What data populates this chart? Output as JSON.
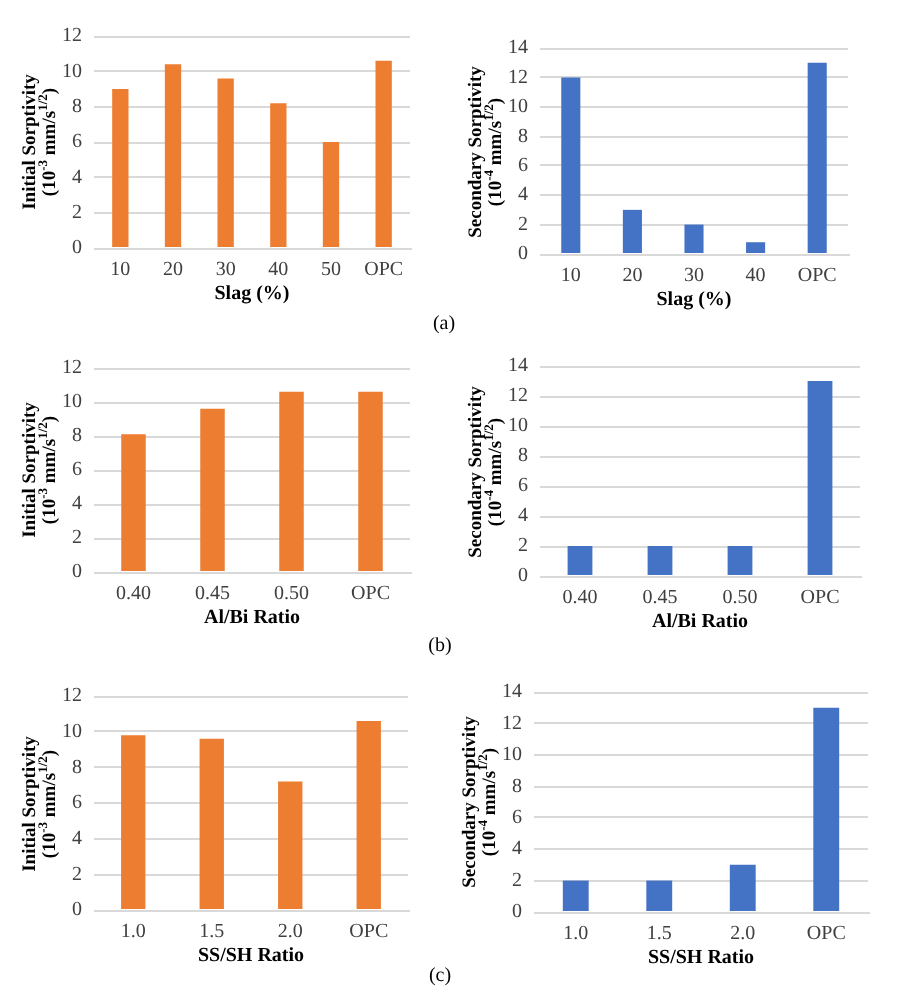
{
  "chart_data": [
    {
      "type": "bar",
      "categories": [
        "10",
        "20",
        "30",
        "40",
        "50",
        "OPC"
      ],
      "values": [
        9.0,
        10.4,
        9.6,
        8.2,
        6.0,
        10.6
      ],
      "color": "#ed7d31",
      "xlabel": "Slag (%)",
      "ylabel": "Initial Sorptivity\n(10$^{-3}$ mm/s$^{1/2}$)",
      "ylim": [
        0,
        12
      ],
      "yticks": [
        0,
        2,
        4,
        6,
        8,
        10,
        12
      ],
      "grid": "y",
      "annotations": [
        "(a)"
      ]
    },
    {
      "type": "bar",
      "categories": [
        "10",
        "20",
        "30",
        "40",
        "OPC"
      ],
      "values": [
        12,
        3,
        2,
        0.8,
        13
      ],
      "color": "#4472c4",
      "xlabel": "Slag (%)",
      "ylabel": "Secondary Sorptivity\n(10$^{-4}$ mm/s$^{1/2}$)",
      "ylim": [
        0,
        14
      ],
      "yticks": [
        0,
        2,
        4,
        6,
        8,
        10,
        12,
        14
      ],
      "grid": "y"
    },
    {
      "type": "bar",
      "categories": [
        "0.40",
        "0.45",
        "0.50",
        "OPC"
      ],
      "values": [
        8.1,
        9.6,
        10.6,
        10.6
      ],
      "color": "#ed7d31",
      "xlabel": "Al/Bi Ratio",
      "ylabel": "Initial Sorptivity\n(10$^{-3}$ mm/s$^{1/2}$)",
      "ylim": [
        0,
        12
      ],
      "yticks": [
        0,
        2,
        4,
        6,
        8,
        10,
        12
      ],
      "grid": "y",
      "annotations": [
        "(b)"
      ]
    },
    {
      "type": "bar",
      "categories": [
        "0.40",
        "0.45",
        "0.50",
        "OPC"
      ],
      "values": [
        2,
        2,
        2,
        13
      ],
      "color": "#4472c4",
      "xlabel": "Al/Bi Ratio",
      "ylabel": "Secondary Sorptivity\n(10$^{-4}$ mm/s$^{1/2}$)",
      "ylim": [
        0,
        14
      ],
      "yticks": [
        0,
        2,
        4,
        6,
        8,
        10,
        12,
        14
      ],
      "grid": "y"
    },
    {
      "type": "bar",
      "categories": [
        "1.0",
        "1.5",
        "2.0",
        "OPC"
      ],
      "values": [
        9.8,
        9.6,
        7.2,
        10.6
      ],
      "color": "#ed7d31",
      "xlabel": "SS/SH Ratio",
      "ylabel": "Initial Sorptivity\n(10$^{-3}$ mm/s$^{1/2}$)",
      "ylim": [
        0,
        12
      ],
      "yticks": [
        0,
        2,
        4,
        6,
        8,
        10,
        12
      ],
      "grid": "y",
      "annotations": [
        "(c)"
      ]
    },
    {
      "type": "bar",
      "categories": [
        "1.0",
        "1.5",
        "2.0",
        "OPC"
      ],
      "values": [
        2,
        2,
        3,
        13
      ],
      "color": "#4472c4",
      "xlabel": "SS/SH Ratio",
      "ylabel": "Secondary Sorptivity\n(10$^{-4}$ mm/s$^{1/2}$)",
      "ylim": [
        0,
        14
      ],
      "yticks": [
        0,
        2,
        4,
        6,
        8,
        10,
        12,
        14
      ],
      "grid": "y"
    }
  ]
}
